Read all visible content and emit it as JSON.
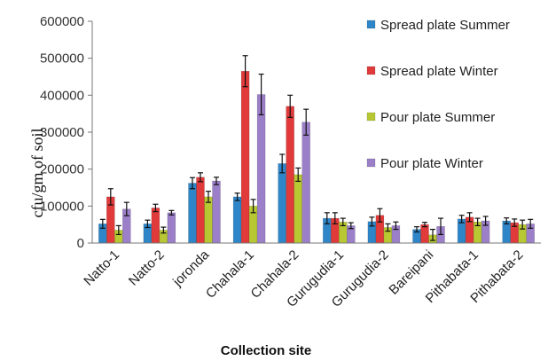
{
  "chart_data": {
    "type": "bar",
    "xlabel": "Collection site",
    "ylabel": "cfu/gm of soil",
    "ylim": [
      0,
      600000
    ],
    "yticks": [
      "0",
      "100000",
      "200000",
      "300000",
      "400000",
      "500000",
      "600000"
    ],
    "grid": false,
    "legend_position": "right",
    "categories": [
      "Natto-1",
      "Natto-2",
      "joronda",
      "Chahala-1",
      "Chahala-2",
      "Gurugudia-1",
      "Gurugudia-2",
      "Bareipani",
      "Pithabata-1",
      "Pithabata-2"
    ],
    "series": [
      {
        "name": "Spread plate Summer",
        "color": "#2e86c9",
        "values": [
          52000,
          52000,
          162000,
          125000,
          215000,
          67000,
          58000,
          37000,
          65000,
          60000
        ],
        "errors": [
          12000,
          10000,
          15000,
          10000,
          25000,
          15000,
          12000,
          7000,
          10000,
          8000
        ]
      },
      {
        "name": "Spread plate Winter",
        "color": "#e03a3a",
        "values": [
          125000,
          95000,
          178000,
          465000,
          370000,
          67000,
          75000,
          50000,
          70000,
          55000
        ],
        "errors": [
          22000,
          10000,
          12000,
          42000,
          30000,
          15000,
          18000,
          6000,
          12000,
          10000
        ]
      },
      {
        "name": "Pour plate Summer",
        "color": "#b8c832",
        "values": [
          35000,
          35000,
          125000,
          100000,
          185000,
          57000,
          42000,
          22000,
          57000,
          50000
        ],
        "errors": [
          12000,
          8000,
          15000,
          18000,
          18000,
          10000,
          10000,
          15000,
          10000,
          12000
        ]
      },
      {
        "name": "Pour plate Winter",
        "color": "#9b7fc8",
        "values": [
          92000,
          82000,
          168000,
          402000,
          327000,
          47000,
          47000,
          45000,
          60000,
          52000
        ],
        "errors": [
          18000,
          6000,
          10000,
          55000,
          35000,
          8000,
          10000,
          22000,
          12000,
          12000
        ]
      }
    ]
  }
}
